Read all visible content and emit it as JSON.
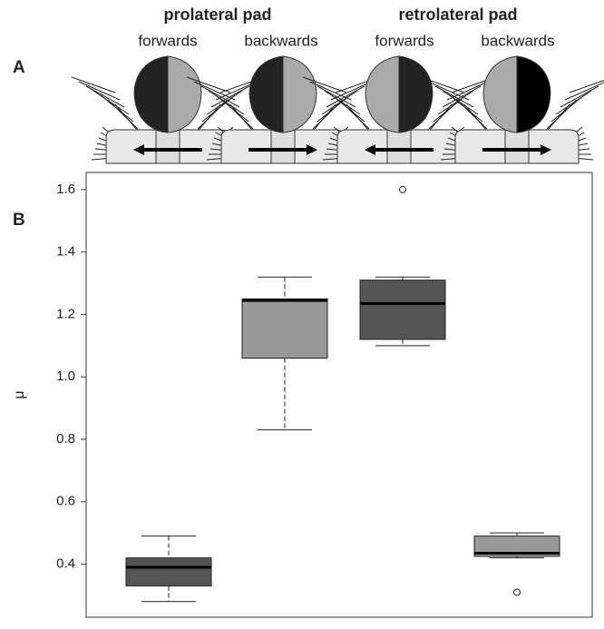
{
  "panel_labels": [
    "A",
    "B"
  ],
  "panel_a": {
    "groups": [
      {
        "title": "prolateral pad",
        "directions": [
          "forwards",
          "backwards"
        ]
      },
      {
        "title": "retrolateral pad",
        "directions": [
          "forwards",
          "backwards"
        ]
      }
    ]
  },
  "chart_data": {
    "type": "box",
    "ylabel": "μ",
    "ylim": [
      0.23,
      1.655
    ],
    "yticks": [
      0.4,
      0.6,
      0.8,
      {
        "value": 1,
        "label": "1.0"
      },
      1.2,
      1.4,
      1.6
    ],
    "boxes": [
      {
        "whisker_low": 0.28,
        "q1": 0.33,
        "median": 0.39,
        "q3": 0.42,
        "whisker_high": 0.49,
        "color": "#555555"
      },
      {
        "whisker_low": 0.83,
        "q1": 1.06,
        "median": 1.245,
        "q3": 1.25,
        "whisker_high": 1.32,
        "color": "#999999"
      },
      {
        "whisker_low": 1.1,
        "q1": 1.12,
        "median": 1.235,
        "q3": 1.31,
        "whisker_high": 1.32,
        "color": "#555555",
        "outliers": [
          1.6
        ]
      },
      {
        "whisker_low": 0.42,
        "q1": 0.425,
        "median": 0.435,
        "q3": 0.49,
        "whisker_high": 0.5,
        "color": "#999999",
        "outliers": [
          0.31
        ]
      }
    ]
  }
}
